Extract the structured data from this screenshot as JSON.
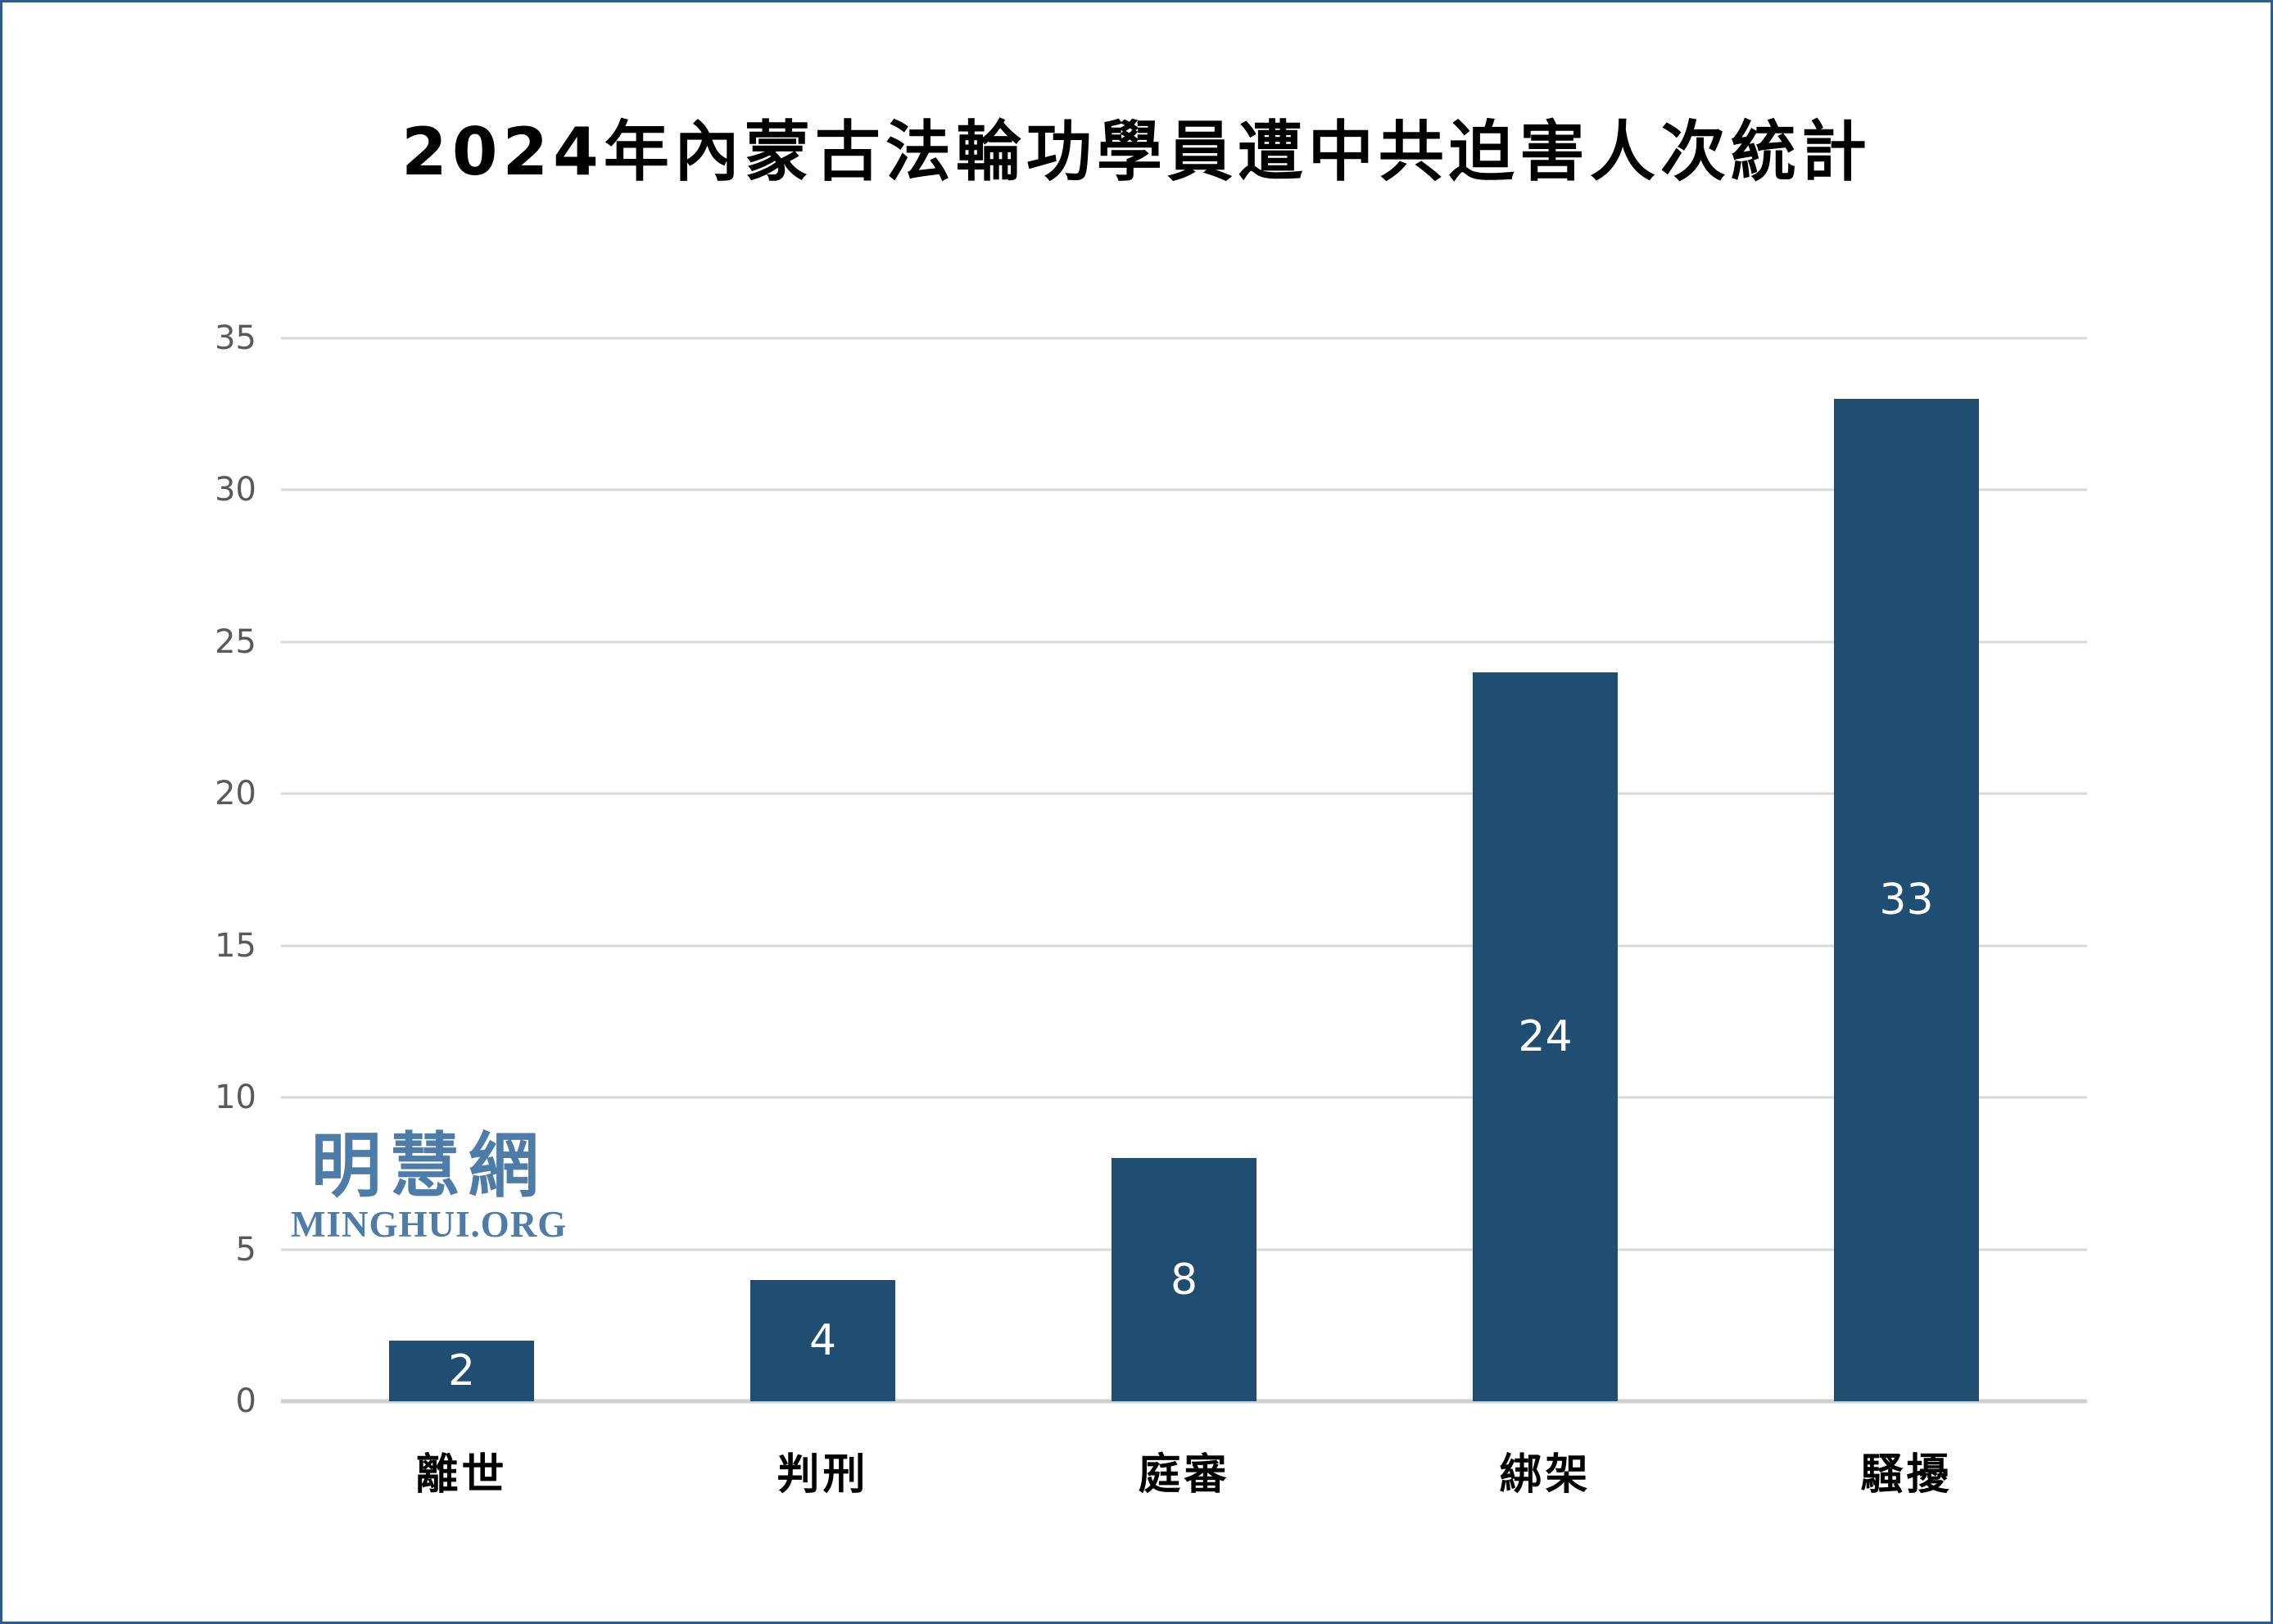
{
  "page": {
    "background_color": "#FFFFFF",
    "border_color": "#2E5B8C"
  },
  "title": "2024年內蒙古法輪功學員遭中共迫害人次統計",
  "watermark": {
    "cjk": "明慧網",
    "latin": "MINGHUI.ORG",
    "color": "#4E7CA8"
  },
  "chart_data": {
    "type": "bar",
    "title": "2024年內蒙古法輪功學員遭中共迫害人次統計",
    "categories": [
      "離世",
      "判刑",
      "庭審",
      "綁架",
      "騷擾"
    ],
    "values": [
      2,
      4,
      8,
      24,
      33
    ],
    "ylim": [
      0,
      35
    ],
    "yticks": [
      0,
      5,
      10,
      15,
      20,
      25,
      30,
      35
    ],
    "grid": true,
    "legend": false,
    "bar_color": "#204E73",
    "value_label_color": "#FFFFFF",
    "axis_tick_color": "#595959",
    "gridline_color": "#D9D9D9",
    "baseline_color": "#CFCFCF"
  }
}
